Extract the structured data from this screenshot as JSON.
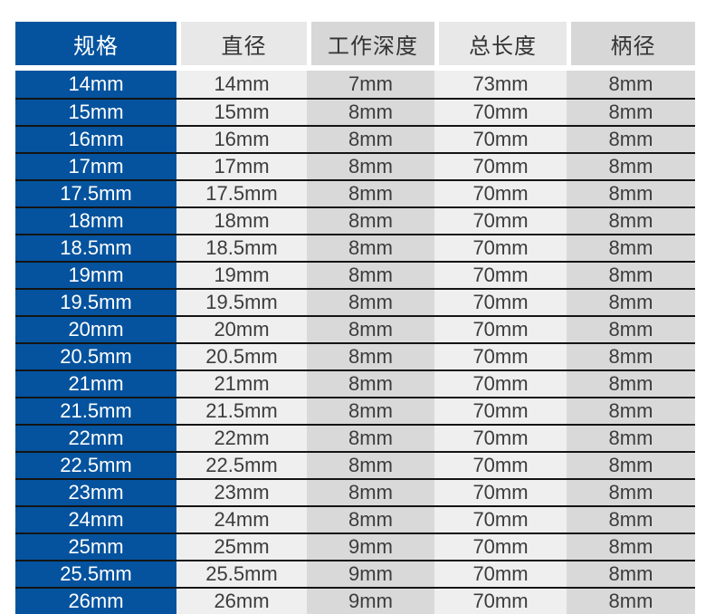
{
  "chart_data": {
    "type": "table",
    "title": "",
    "columns": [
      "规格",
      "直径",
      "工作深度",
      "总长度",
      "柄径"
    ],
    "column_keys": [
      "spec",
      "diameter",
      "working-depth",
      "total-length",
      "shank-diameter"
    ],
    "rows": [
      [
        "14mm",
        "14mm",
        "7mm",
        "73mm",
        "8mm"
      ],
      [
        "15mm",
        "15mm",
        "8mm",
        "70mm",
        "8mm"
      ],
      [
        "16mm",
        "16mm",
        "8mm",
        "70mm",
        "8mm"
      ],
      [
        "17mm",
        "17mm",
        "8mm",
        "70mm",
        "8mm"
      ],
      [
        "17.5mm",
        "17.5mm",
        "8mm",
        "70mm",
        "8mm"
      ],
      [
        "18mm",
        "18mm",
        "8mm",
        "70mm",
        "8mm"
      ],
      [
        "18.5mm",
        "18.5mm",
        "8mm",
        "70mm",
        "8mm"
      ],
      [
        "19mm",
        "19mm",
        "8mm",
        "70mm",
        "8mm"
      ],
      [
        "19.5mm",
        "19.5mm",
        "8mm",
        "70mm",
        "8mm"
      ],
      [
        "20mm",
        "20mm",
        "8mm",
        "70mm",
        "8mm"
      ],
      [
        "20.5mm",
        "20.5mm",
        "8mm",
        "70mm",
        "8mm"
      ],
      [
        "21mm",
        "21mm",
        "8mm",
        "70mm",
        "8mm"
      ],
      [
        "21.5mm",
        "21.5mm",
        "8mm",
        "70mm",
        "8mm"
      ],
      [
        "22mm",
        "22mm",
        "8mm",
        "70mm",
        "8mm"
      ],
      [
        "22.5mm",
        "22.5mm",
        "8mm",
        "70mm",
        "8mm"
      ],
      [
        "23mm",
        "23mm",
        "8mm",
        "70mm",
        "8mm"
      ],
      [
        "24mm",
        "24mm",
        "8mm",
        "70mm",
        "8mm"
      ],
      [
        "25mm",
        "25mm",
        "9mm",
        "70mm",
        "8mm"
      ],
      [
        "25.5mm",
        "25.5mm",
        "9mm",
        "70mm",
        "8mm"
      ],
      [
        "26mm",
        "26mm",
        "9mm",
        "70mm",
        "8mm"
      ]
    ],
    "notes": "last row only partially visible (clipped at bottom edge)",
    "layout": {
      "legend": "none",
      "grid": "horizontal row separators only",
      "header_gaps": "white vertical gaps between header cells"
    }
  },
  "colors": {
    "spec_blue": "#05539e",
    "row_light": "#efefef",
    "row_dark": "#d9d9d9",
    "header_light": "#e8e8e8",
    "header_dark": "#d7d7d7",
    "separator": "#141414",
    "spec_text": "#ffffff",
    "body_text": "#3c3c3c",
    "header_text": "#333333"
  }
}
